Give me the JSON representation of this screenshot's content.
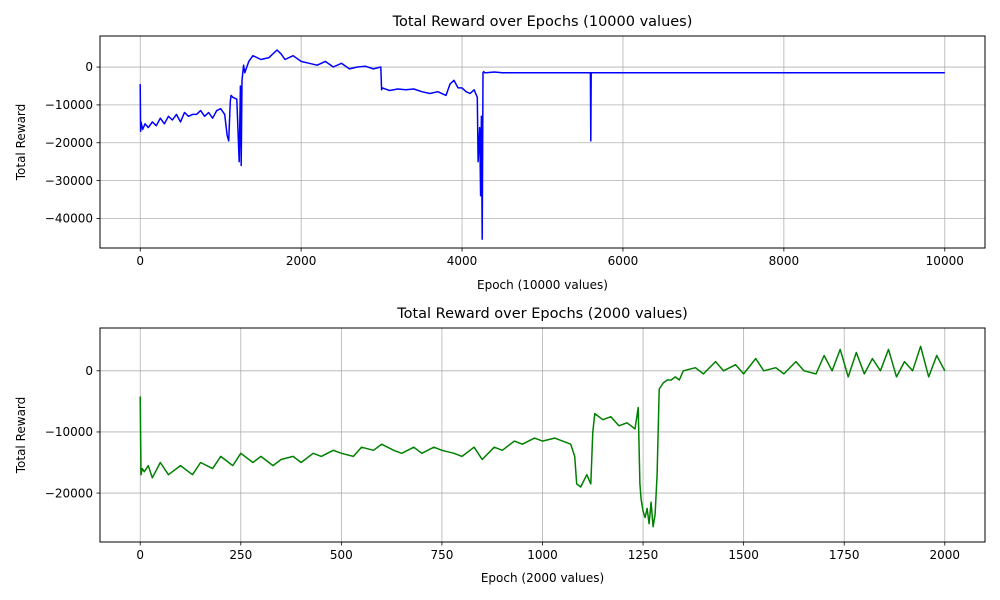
{
  "chart_data": [
    {
      "type": "line",
      "title": "Total Reward over Epochs (10000 values)",
      "xlabel": "Epoch (10000 values)",
      "ylabel": "Total Reward",
      "xlim": [
        -500,
        10500
      ],
      "ylim": [
        -47800,
        8200
      ],
      "xticks": [
        0,
        2000,
        4000,
        6000,
        8000,
        10000
      ],
      "xtick_labels": [
        "0",
        "2000",
        "4000",
        "6000",
        "8000",
        "10000"
      ],
      "yticks": [
        0,
        -10000,
        -20000,
        -30000,
        -40000
      ],
      "ytick_labels": [
        "0",
        "−10000",
        "−20000",
        "−30000",
        "−40000"
      ],
      "grid": true,
      "series": [
        {
          "color": "#0000ff",
          "x": [
            0,
            5,
            10,
            30,
            60,
            100,
            150,
            200,
            250,
            300,
            350,
            400,
            450,
            500,
            550,
            600,
            650,
            700,
            750,
            800,
            850,
            900,
            950,
            1000,
            1050,
            1080,
            1100,
            1120,
            1130,
            1150,
            1200,
            1230,
            1245,
            1255,
            1265,
            1275,
            1285,
            1300,
            1350,
            1400,
            1500,
            1600,
            1700,
            1750,
            1800,
            1900,
            2000,
            2100,
            2200,
            2300,
            2400,
            2500,
            2600,
            2700,
            2800,
            2900,
            2990,
            3000,
            3010,
            3100,
            3200,
            3300,
            3400,
            3500,
            3600,
            3700,
            3800,
            3850,
            3900,
            3950,
            4000,
            4050,
            4100,
            4150,
            4190,
            4200,
            4220,
            4230,
            4240,
            4250,
            4260,
            4270,
            4280,
            4300,
            4400,
            4500,
            5000,
            5500,
            5595,
            5600,
            5605,
            5610,
            5700,
            6000,
            6500,
            7000,
            7500,
            8000,
            8500,
            9000,
            9500,
            10000
          ],
          "y": [
            -4500,
            -17000,
            -14500,
            -16500,
            -15000,
            -16000,
            -14500,
            -15500,
            -13500,
            -15000,
            -13000,
            -14000,
            -12500,
            -14500,
            -12000,
            -13000,
            -12500,
            -12500,
            -11500,
            -13000,
            -12000,
            -13500,
            -11500,
            -11000,
            -12500,
            -18000,
            -19500,
            -9000,
            -7500,
            -8000,
            -8500,
            -25000,
            -5000,
            -26000,
            -3500,
            -1500,
            500,
            -1500,
            1500,
            3000,
            2000,
            2500,
            4500,
            3500,
            2000,
            3000,
            1500,
            1000,
            500,
            1500,
            0,
            1000,
            -500,
            0,
            200,
            -500,
            0,
            -6000,
            -5500,
            -6200,
            -5800,
            -6000,
            -5800,
            -6500,
            -7000,
            -6500,
            -7500,
            -4500,
            -3500,
            -5500,
            -5500,
            -6500,
            -7000,
            -6000,
            -8000,
            -25000,
            -16000,
            -34000,
            -13000,
            -45500,
            -1500,
            -1200,
            -1500,
            -1500,
            -1300,
            -1500,
            -1500,
            -1500,
            -1500,
            -19500,
            -1500,
            -1500,
            -1500,
            -1500,
            -1500,
            -1500,
            -1500,
            -1500,
            -1500,
            -1500,
            -1500,
            -1500
          ]
        }
      ]
    },
    {
      "type": "line",
      "title": "Total Reward over Epochs (2000 values)",
      "xlabel": "Epoch (2000 values)",
      "ylabel": "Total Reward",
      "xlim": [
        -100,
        2100
      ],
      "ylim": [
        -28000,
        7000
      ],
      "xticks": [
        0,
        250,
        500,
        750,
        1000,
        1250,
        1500,
        1750,
        2000
      ],
      "xtick_labels": [
        "0",
        "250",
        "500",
        "750",
        "1000",
        "1250",
        "1500",
        "1750",
        "2000"
      ],
      "yticks": [
        0,
        -10000,
        -20000
      ],
      "ytick_labels": [
        "0",
        "−10000",
        "−20000"
      ],
      "grid": true,
      "series": [
        {
          "color": "#008000",
          "x": [
            0,
            2,
            5,
            10,
            20,
            30,
            50,
            70,
            100,
            130,
            150,
            180,
            200,
            230,
            250,
            280,
            300,
            330,
            350,
            380,
            400,
            430,
            450,
            480,
            500,
            530,
            550,
            580,
            600,
            630,
            650,
            680,
            700,
            730,
            750,
            780,
            800,
            830,
            850,
            880,
            900,
            930,
            950,
            980,
            1000,
            1030,
            1050,
            1070,
            1080,
            1085,
            1095,
            1110,
            1120,
            1125,
            1130,
            1150,
            1170,
            1190,
            1210,
            1230,
            1238,
            1242,
            1245,
            1250,
            1255,
            1260,
            1265,
            1270,
            1275,
            1280,
            1285,
            1290,
            1300,
            1310,
            1320,
            1330,
            1340,
            1350,
            1380,
            1400,
            1430,
            1450,
            1480,
            1500,
            1530,
            1550,
            1580,
            1600,
            1630,
            1650,
            1680,
            1700,
            1720,
            1740,
            1760,
            1780,
            1800,
            1820,
            1840,
            1860,
            1880,
            1900,
            1920,
            1940,
            1960,
            1980,
            2000
          ],
          "y": [
            -4200,
            -17000,
            -16000,
            -16500,
            -15500,
            -17500,
            -15000,
            -17000,
            -15500,
            -17000,
            -15000,
            -16000,
            -14000,
            -15500,
            -13500,
            -15000,
            -14000,
            -15500,
            -14500,
            -14000,
            -15000,
            -13500,
            -14000,
            -13000,
            -13500,
            -14000,
            -12500,
            -13000,
            -12000,
            -13000,
            -13500,
            -12500,
            -13500,
            -12500,
            -13000,
            -13500,
            -14000,
            -12500,
            -14500,
            -12500,
            -13000,
            -11500,
            -12000,
            -11000,
            -11500,
            -11000,
            -11500,
            -12000,
            -14000,
            -18500,
            -19000,
            -17000,
            -18500,
            -10000,
            -7000,
            -8000,
            -7500,
            -9000,
            -8500,
            -9500,
            -6000,
            -18500,
            -21000,
            -23000,
            -24000,
            -22500,
            -25000,
            -21500,
            -25500,
            -23500,
            -17000,
            -3000,
            -2000,
            -1500,
            -1500,
            -1000,
            -1500,
            0,
            500,
            -500,
            1500,
            0,
            1000,
            -500,
            2000,
            0,
            500,
            -500,
            1500,
            0,
            -500,
            2500,
            0,
            3500,
            -1000,
            3000,
            -500,
            2000,
            0,
            3500,
            -1000,
            1500,
            0,
            4000,
            -1000,
            2500,
            0
          ]
        }
      ]
    }
  ]
}
